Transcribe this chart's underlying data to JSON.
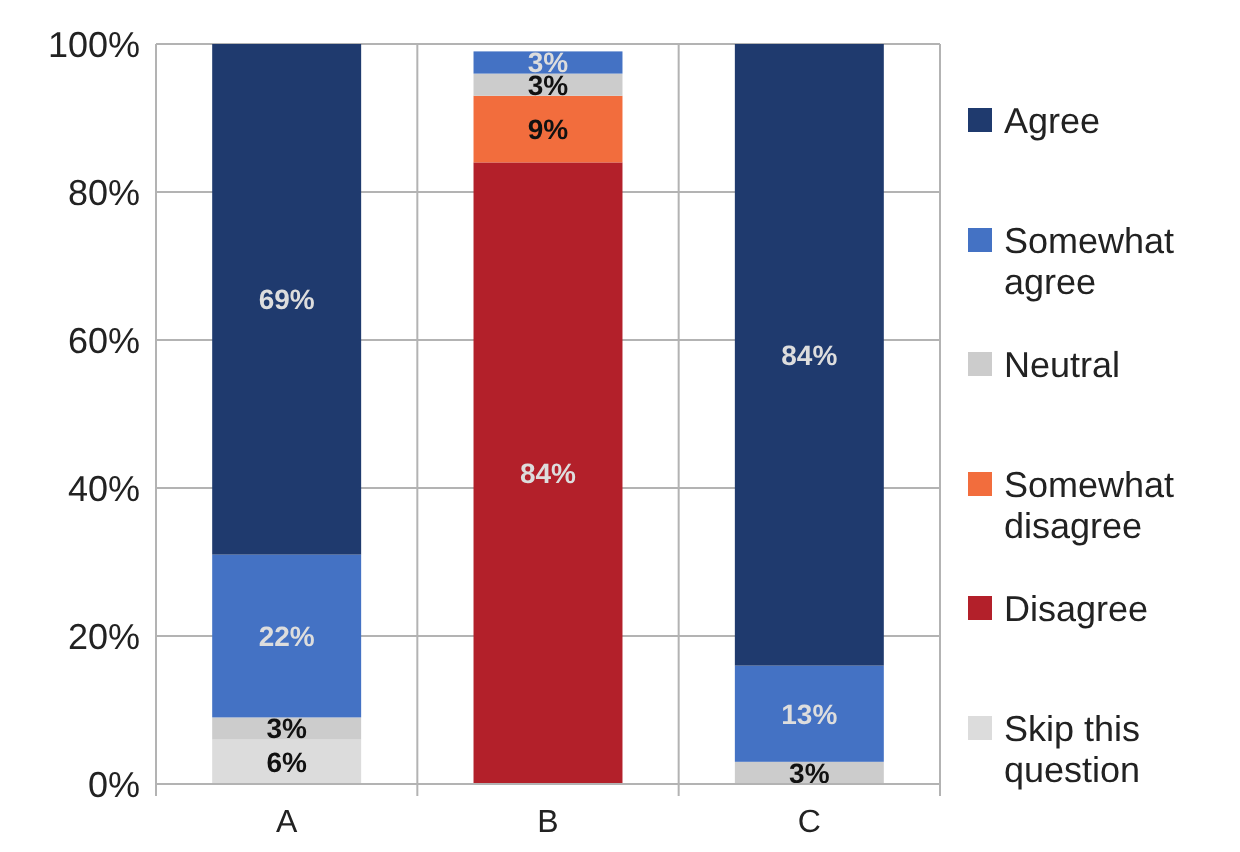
{
  "chart_data": {
    "type": "bar",
    "stacked": true,
    "categories": [
      "A",
      "B",
      "C"
    ],
    "series": [
      {
        "name": "Skip this question",
        "color": "#dcdcdc",
        "values": [
          6,
          0,
          0
        ],
        "value_labels": [
          "6%",
          null,
          null
        ]
      },
      {
        "name": "Disagree",
        "color": "#b3202a",
        "values": [
          0,
          84,
          0
        ],
        "value_labels": [
          null,
          "84%",
          null
        ]
      },
      {
        "name": "Somewhat disagree",
        "color": "#f26d3d",
        "values": [
          0,
          9,
          0
        ],
        "value_labels": [
          null,
          "9%",
          null
        ]
      },
      {
        "name": "Neutral",
        "color": "#cccccc",
        "values": [
          3,
          3,
          3
        ],
        "value_labels": [
          "3%",
          "3%",
          "3%"
        ]
      },
      {
        "name": "Somewhat agree",
        "color": "#4472c4",
        "values": [
          22,
          3,
          13
        ],
        "value_labels": [
          "22%",
          "3%",
          "13%"
        ]
      },
      {
        "name": "Agree",
        "color": "#1f3a6e",
        "values": [
          69,
          0,
          84
        ],
        "value_labels": [
          "69%",
          null,
          "84%"
        ]
      }
    ],
    "ylim": [
      0,
      100
    ],
    "yticks": [
      {
        "value": 0,
        "label": "0%"
      },
      {
        "value": 20,
        "label": "20%"
      },
      {
        "value": 40,
        "label": "40%"
      },
      {
        "value": 60,
        "label": "60%"
      },
      {
        "value": 80,
        "label": "80%"
      },
      {
        "value": 100,
        "label": "100%"
      }
    ],
    "grid": true,
    "legend": "right"
  }
}
